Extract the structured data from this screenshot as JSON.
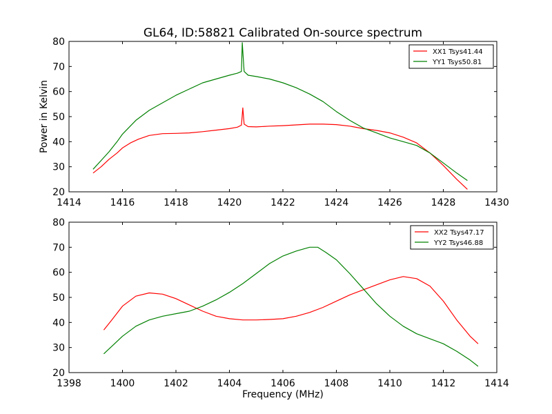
{
  "chart_data": [
    {
      "type": "line",
      "title": "GL64, ID:58821 Calibrated On-source spectrum",
      "xlabel": "",
      "ylabel": "Power in Kelvin",
      "xlim": [
        1414,
        1430
      ],
      "ylim": [
        20,
        80
      ],
      "xticks": [
        1414,
        1416,
        1418,
        1420,
        1422,
        1424,
        1426,
        1428,
        1430
      ],
      "yticks": [
        20,
        30,
        40,
        50,
        60,
        70,
        80
      ],
      "legend_position": "top-right",
      "series": [
        {
          "name": "XX1 Tsys41.44",
          "color": "#ff0000",
          "points": [
            [
              1414.9,
              27.5
            ],
            [
              1415.2,
              30.0
            ],
            [
              1415.5,
              33.0
            ],
            [
              1415.8,
              35.5
            ],
            [
              1416.0,
              37.5
            ],
            [
              1416.3,
              39.5
            ],
            [
              1416.6,
              41.0
            ],
            [
              1417.0,
              42.5
            ],
            [
              1417.5,
              43.2
            ],
            [
              1418.0,
              43.3
            ],
            [
              1418.5,
              43.5
            ],
            [
              1419.0,
              44.0
            ],
            [
              1419.5,
              44.6
            ],
            [
              1420.0,
              45.2
            ],
            [
              1420.3,
              45.8
            ],
            [
              1420.45,
              46.6
            ],
            [
              1420.5,
              53.5
            ],
            [
              1420.55,
              47.0
            ],
            [
              1420.7,
              46.0
            ],
            [
              1421.0,
              45.9
            ],
            [
              1421.5,
              46.2
            ],
            [
              1422.0,
              46.4
            ],
            [
              1422.5,
              46.7
            ],
            [
              1423.0,
              47.0
            ],
            [
              1423.5,
              47.0
            ],
            [
              1424.0,
              46.8
            ],
            [
              1424.5,
              46.2
            ],
            [
              1425.0,
              45.2
            ],
            [
              1425.5,
              44.5
            ],
            [
              1426.0,
              43.5
            ],
            [
              1426.5,
              41.8
            ],
            [
              1427.0,
              39.5
            ],
            [
              1427.5,
              35.5
            ],
            [
              1428.0,
              30.5
            ],
            [
              1428.5,
              25.0
            ],
            [
              1428.9,
              21.0
            ]
          ]
        },
        {
          "name": "YY1 Tsys50.81",
          "color": "#008000",
          "points": [
            [
              1414.9,
              29.0
            ],
            [
              1415.2,
              32.5
            ],
            [
              1415.5,
              36.0
            ],
            [
              1415.8,
              40.0
            ],
            [
              1416.0,
              43.0
            ],
            [
              1416.5,
              48.5
            ],
            [
              1417.0,
              52.5
            ],
            [
              1417.5,
              55.5
            ],
            [
              1418.0,
              58.5
            ],
            [
              1418.5,
              61.0
            ],
            [
              1419.0,
              63.5
            ],
            [
              1419.5,
              65.0
            ],
            [
              1420.0,
              66.5
            ],
            [
              1420.3,
              67.3
            ],
            [
              1420.45,
              68.0
            ],
            [
              1420.48,
              79.5
            ],
            [
              1420.55,
              68.0
            ],
            [
              1420.7,
              66.5
            ],
            [
              1421.0,
              66.0
            ],
            [
              1421.5,
              65.0
            ],
            [
              1422.0,
              63.5
            ],
            [
              1422.5,
              61.5
            ],
            [
              1423.0,
              59.0
            ],
            [
              1423.5,
              56.0
            ],
            [
              1424.0,
              52.0
            ],
            [
              1424.5,
              48.5
            ],
            [
              1425.0,
              45.5
            ],
            [
              1425.5,
              43.5
            ],
            [
              1426.0,
              41.5
            ],
            [
              1426.5,
              40.0
            ],
            [
              1427.0,
              38.5
            ],
            [
              1427.5,
              35.5
            ],
            [
              1428.0,
              31.5
            ],
            [
              1428.5,
              27.5
            ],
            [
              1428.9,
              24.5
            ]
          ]
        }
      ]
    },
    {
      "type": "line",
      "title": "",
      "xlabel": "Frequency (MHz)",
      "ylabel": "",
      "xlim": [
        1398,
        1414
      ],
      "ylim": [
        20,
        80
      ],
      "xticks": [
        1398,
        1400,
        1402,
        1404,
        1406,
        1408,
        1410,
        1412,
        1414
      ],
      "yticks": [
        20,
        30,
        40,
        50,
        60,
        70,
        80
      ],
      "legend_position": "top-right",
      "series": [
        {
          "name": "XX2 Tsys47.17",
          "color": "#ff0000",
          "points": [
            [
              1399.3,
              37.0
            ],
            [
              1399.6,
              41.0
            ],
            [
              1400.0,
              46.5
            ],
            [
              1400.5,
              50.5
            ],
            [
              1401.0,
              51.8
            ],
            [
              1401.5,
              51.3
            ],
            [
              1402.0,
              49.5
            ],
            [
              1402.5,
              47.0
            ],
            [
              1403.0,
              44.5
            ],
            [
              1403.5,
              42.5
            ],
            [
              1404.0,
              41.5
            ],
            [
              1404.5,
              41.0
            ],
            [
              1405.0,
              41.0
            ],
            [
              1405.5,
              41.2
            ],
            [
              1406.0,
              41.5
            ],
            [
              1406.5,
              42.5
            ],
            [
              1407.0,
              44.0
            ],
            [
              1407.5,
              46.0
            ],
            [
              1408.0,
              48.5
            ],
            [
              1408.5,
              51.0
            ],
            [
              1409.0,
              53.0
            ],
            [
              1409.5,
              55.0
            ],
            [
              1410.0,
              57.0
            ],
            [
              1410.5,
              58.3
            ],
            [
              1411.0,
              57.5
            ],
            [
              1411.5,
              54.5
            ],
            [
              1412.0,
              48.5
            ],
            [
              1412.5,
              41.0
            ],
            [
              1413.0,
              34.5
            ],
            [
              1413.3,
              31.5
            ]
          ]
        },
        {
          "name": "YY2 Tsys46.88",
          "color": "#008000",
          "points": [
            [
              1399.3,
              27.5
            ],
            [
              1399.6,
              30.5
            ],
            [
              1400.0,
              34.5
            ],
            [
              1400.5,
              38.5
            ],
            [
              1401.0,
              41.0
            ],
            [
              1401.5,
              42.5
            ],
            [
              1402.0,
              43.5
            ],
            [
              1402.5,
              44.5
            ],
            [
              1403.0,
              46.5
            ],
            [
              1403.5,
              49.0
            ],
            [
              1404.0,
              52.0
            ],
            [
              1404.5,
              55.5
            ],
            [
              1405.0,
              59.5
            ],
            [
              1405.5,
              63.5
            ],
            [
              1406.0,
              66.5
            ],
            [
              1406.5,
              68.5
            ],
            [
              1407.0,
              70.0
            ],
            [
              1407.3,
              70.0
            ],
            [
              1407.6,
              68.0
            ],
            [
              1408.0,
              65.0
            ],
            [
              1408.5,
              59.5
            ],
            [
              1409.0,
              53.5
            ],
            [
              1409.5,
              47.5
            ],
            [
              1410.0,
              42.5
            ],
            [
              1410.5,
              38.5
            ],
            [
              1411.0,
              35.5
            ],
            [
              1411.5,
              33.5
            ],
            [
              1412.0,
              31.5
            ],
            [
              1412.5,
              28.5
            ],
            [
              1413.0,
              25.0
            ],
            [
              1413.3,
              22.5
            ]
          ]
        }
      ]
    }
  ]
}
